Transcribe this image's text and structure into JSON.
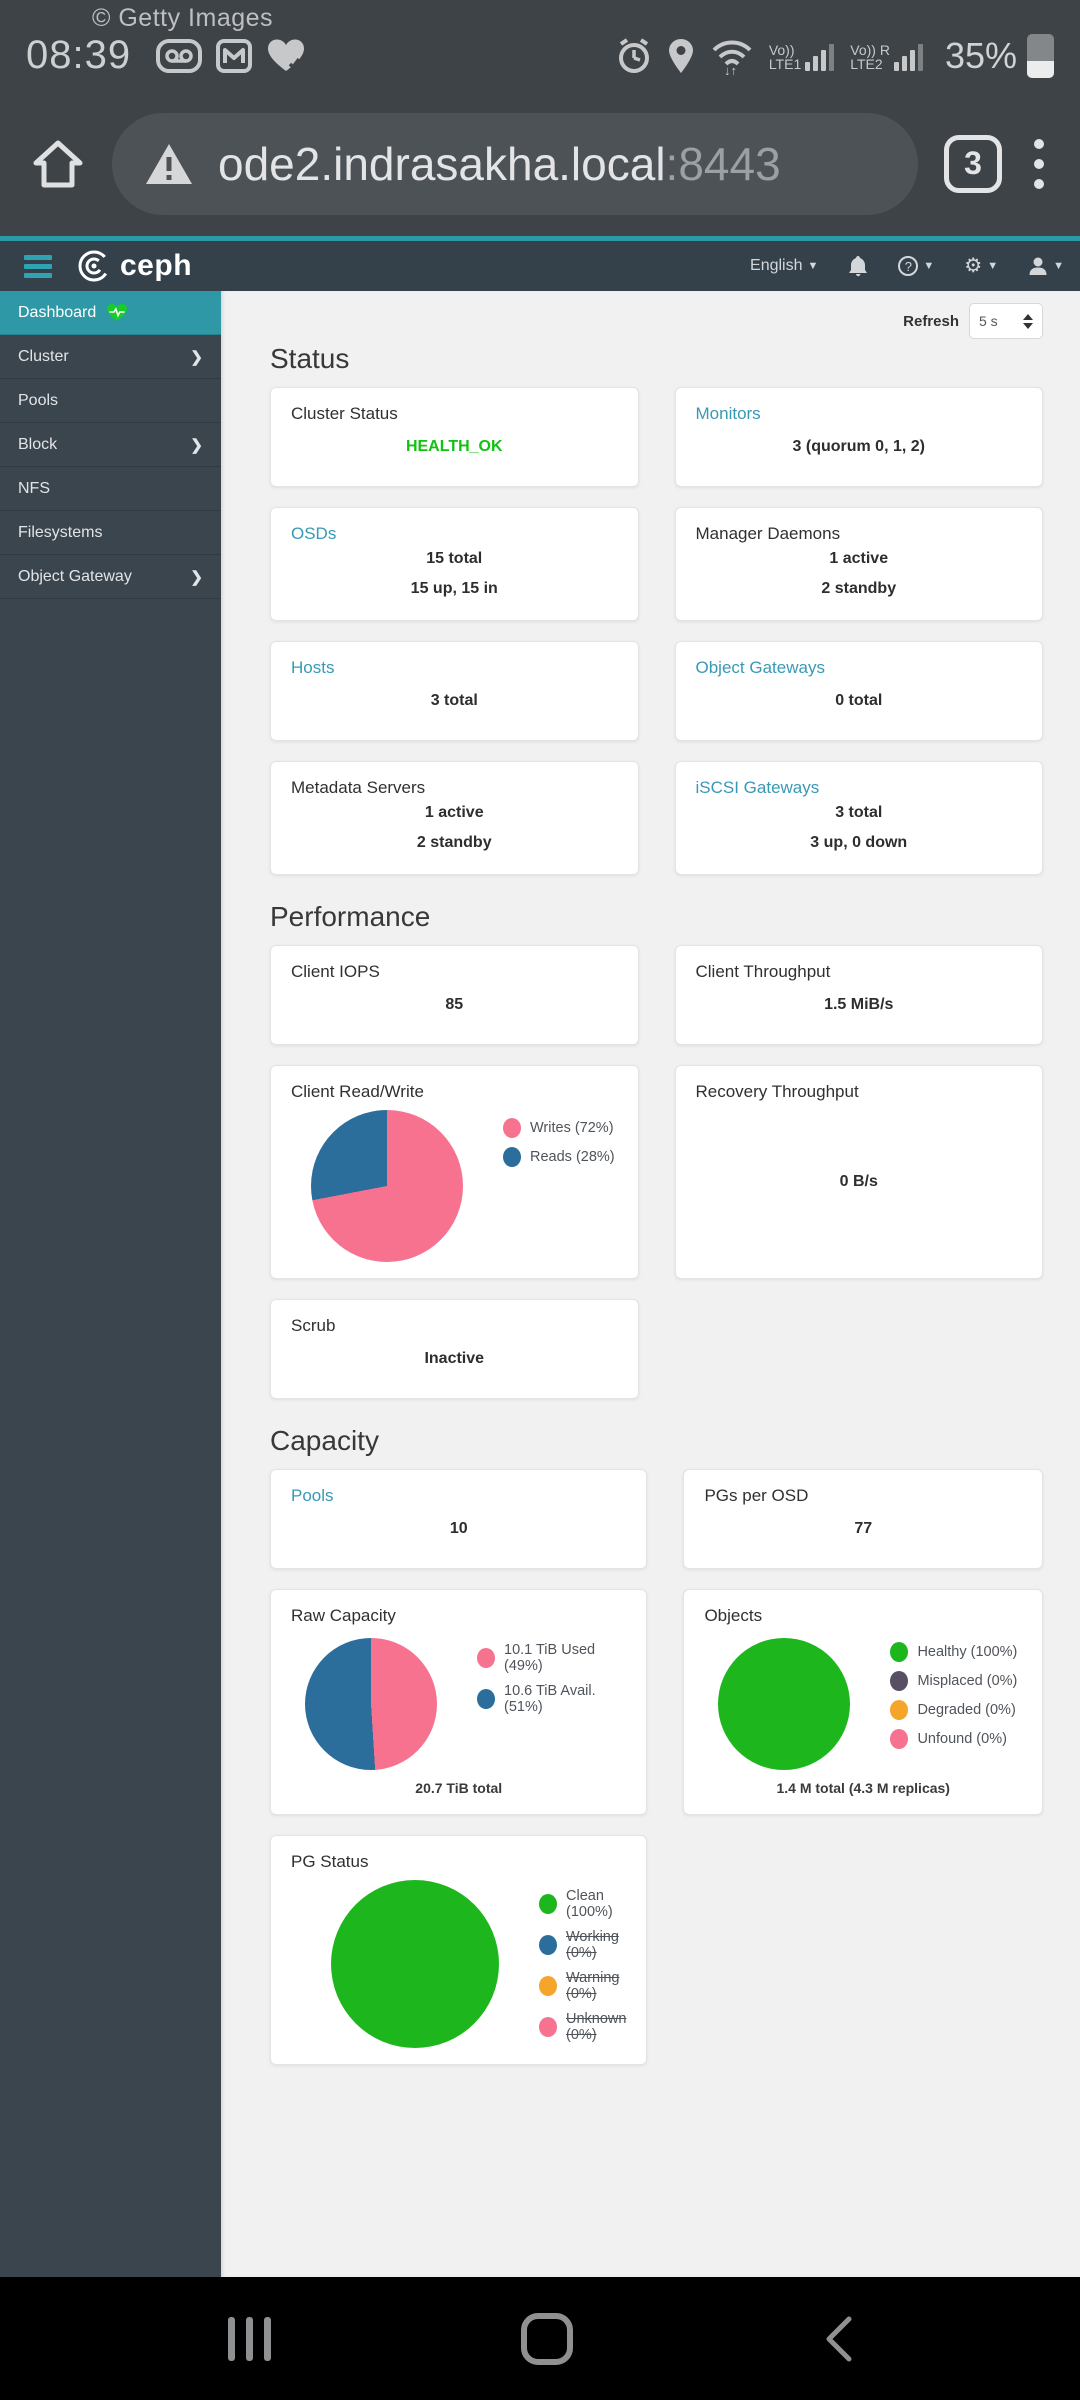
{
  "android": {
    "status_bar": {
      "watermark": "© Getty Images",
      "time": "08:39",
      "battery_percent": "35%",
      "carrier1": {
        "volte": "Vo))",
        "net": "LTE1"
      },
      "carrier2": {
        "volte": "Vo)) R",
        "net": "LTE2"
      },
      "left_icons": [
        "voicemail-icon",
        "gmail-icon",
        "health-heart-icon"
      ],
      "right_icons": [
        "alarm-icon",
        "location-icon",
        "wifi-icon",
        "signal-bars",
        "battery-icon"
      ]
    },
    "nav_bar": {
      "icons": [
        "recents-icon",
        "home-icon",
        "back-icon"
      ]
    }
  },
  "browser": {
    "url_host": "ode2.indrasakha.local",
    "url_port": ":8443",
    "tab_count": "3",
    "icons": [
      "home-icon",
      "warning-icon",
      "menu-dots-icon"
    ]
  },
  "app": {
    "navbar": {
      "brand": "ceph",
      "language": "English",
      "icons": [
        "hamburger-icon",
        "ceph-logo",
        "bell-icon",
        "help-icon",
        "gear-icon",
        "user-icon"
      ]
    },
    "sidebar": {
      "items": [
        {
          "label": "Dashboard",
          "active": true
        },
        {
          "label": "Cluster",
          "chevron": true
        },
        {
          "label": "Pools"
        },
        {
          "label": "Block",
          "chevron": true
        },
        {
          "label": "NFS"
        },
        {
          "label": "Filesystems"
        },
        {
          "label": "Object Gateway",
          "chevron": true
        }
      ]
    },
    "toolbar": {
      "refresh_label": "Refresh",
      "refresh_value": "5 s"
    },
    "sections": {
      "status": "Status",
      "performance": "Performance",
      "capacity": "Capacity"
    },
    "status": {
      "cluster_status": {
        "title": "Cluster Status",
        "value": "HEALTH_OK"
      },
      "monitors": {
        "title": "Monitors",
        "line1": "3 (quorum 0, 1, 2)"
      },
      "osds": {
        "title": "OSDs",
        "line1": "15 total",
        "line2": "15 up, 15 in"
      },
      "manager": {
        "title": "Manager Daemons",
        "line1": "1 active",
        "line2": "2 standby"
      },
      "hosts": {
        "title": "Hosts",
        "line1": "3 total"
      },
      "object_gateways": {
        "title": "Object Gateways",
        "line1": "0 total"
      },
      "mds": {
        "title": "Metadata Servers",
        "line1": "1 active",
        "line2": "2 standby"
      },
      "iscsi": {
        "title": "iSCSI Gateways",
        "line1": "3 total",
        "line2": "3 up, 0 down"
      }
    },
    "performance": {
      "client_iops": {
        "title": "Client IOPS",
        "line1": "85"
      },
      "client_throughput": {
        "title": "Client Throughput",
        "line1": "1.5 MiB/s"
      },
      "client_read_write": {
        "title": "Client Read/Write"
      },
      "recovery_throughput": {
        "title": "Recovery Throughput",
        "line1": "0 B/s"
      },
      "scrub": {
        "title": "Scrub",
        "line1": "Inactive"
      }
    },
    "capacity": {
      "pools": {
        "title": "Pools",
        "line1": "10"
      },
      "pgs_per_osd": {
        "title": "PGs per OSD",
        "line1": "77"
      },
      "raw_capacity": {
        "title": "Raw Capacity"
      },
      "objects": {
        "title": "Objects"
      },
      "pg_status": {
        "title": "PG Status"
      }
    }
  },
  "chart_data": [
    {
      "type": "pie",
      "title": "Client Read/Write",
      "legend_position": "right",
      "segments": [
        {
          "label": "Writes (72%)",
          "value": 72,
          "color": "#f7728f"
        },
        {
          "label": "Reads (28%)",
          "value": 28,
          "color": "#2b6e9c"
        }
      ]
    },
    {
      "type": "pie",
      "title": "Raw Capacity",
      "legend_position": "right",
      "footer": "20.7 TiB total",
      "segments": [
        {
          "label": "10.1 TiB Used (49%)",
          "value": 49,
          "color": "#f7728f"
        },
        {
          "label": "10.6 TiB Avail. (51%)",
          "value": 51,
          "color": "#2b6e9c"
        }
      ]
    },
    {
      "type": "pie",
      "title": "Objects",
      "legend_position": "right",
      "footer": "1.4 M total (4.3 M replicas)",
      "segments": [
        {
          "label": "Healthy (100%)",
          "value": 100,
          "color": "#1db71d"
        },
        {
          "label": "Misplaced (0%)",
          "value": 0,
          "color": "#584f63"
        },
        {
          "label": "Degraded (0%)",
          "value": 0,
          "color": "#f5a62a"
        },
        {
          "label": "Unfound (0%)",
          "value": 0,
          "color": "#f7728f"
        }
      ]
    },
    {
      "type": "pie",
      "title": "PG Status",
      "legend_position": "right",
      "segments": [
        {
          "label": "Clean (100%)",
          "value": 100,
          "color": "#1db71d"
        },
        {
          "label": "Working (0%)",
          "value": 0,
          "color": "#2b6e9c",
          "struck": true
        },
        {
          "label": "Warning (0%)",
          "value": 0,
          "color": "#f5a62a",
          "struck": true
        },
        {
          "label": "Unknown (0%)",
          "value": 0,
          "color": "#f7728f",
          "struck": true
        }
      ]
    }
  ]
}
